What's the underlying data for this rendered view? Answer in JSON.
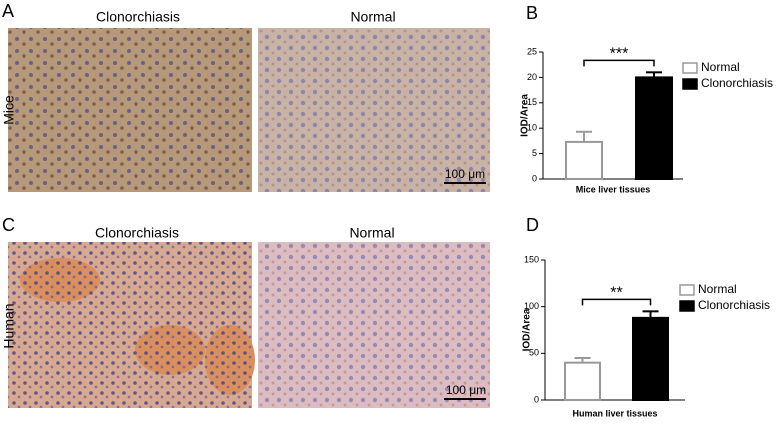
{
  "panels": [
    {
      "label": "A",
      "columns": [
        "Clonorchiasis",
        "Normal"
      ],
      "row": "Mice",
      "scale_bar": "100 μm"
    },
    {
      "label": "C",
      "columns": [
        "Clonorchiasis",
        "Normal"
      ],
      "row": "Human",
      "scale_bar": "100 μm"
    }
  ],
  "chart_data": [
    {
      "type": "bar",
      "panel": "B",
      "ylabel": "IOD/Area",
      "xlabel": "Mice liver tissues",
      "ylim": [
        0,
        25
      ],
      "yticks": [
        0,
        5,
        10,
        15,
        20,
        25
      ],
      "significance": "***",
      "legend": "right",
      "series": [
        {
          "name": "Normal",
          "color": "#ffffff",
          "edgecolor": "#999999",
          "values": [
            7.3
          ],
          "errors": [
            2.0
          ]
        },
        {
          "name": "Clonorchiasis",
          "color": "#000000",
          "edgecolor": "#000000",
          "values": [
            20
          ],
          "errors": [
            1.0
          ]
        }
      ]
    },
    {
      "type": "bar",
      "panel": "D",
      "ylabel": "IOD/Area",
      "xlabel": "Human liver tissues",
      "ylim": [
        0,
        150
      ],
      "yticks": [
        0,
        50,
        100,
        150
      ],
      "significance": "**",
      "legend": "right",
      "series": [
        {
          "name": "Normal",
          "color": "#ffffff",
          "edgecolor": "#999999",
          "values": [
            40
          ],
          "errors": [
            5
          ]
        },
        {
          "name": "Clonorchiasis",
          "color": "#000000",
          "edgecolor": "#000000",
          "values": [
            88
          ],
          "errors": [
            7
          ]
        }
      ]
    }
  ]
}
